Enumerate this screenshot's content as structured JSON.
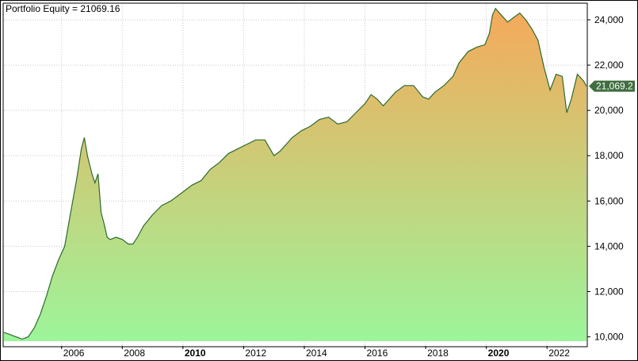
{
  "chart_data": {
    "type": "area",
    "title": "Portfolio Equity = 21069.16",
    "xlabel": "",
    "ylabel": "",
    "x_tick_labels": [
      {
        "year": 2006,
        "label": "2006",
        "bold": false
      },
      {
        "year": 2008,
        "label": "2008",
        "bold": false
      },
      {
        "year": 2010,
        "label": "2010",
        "bold": true
      },
      {
        "year": 2012,
        "label": "2012",
        "bold": false
      },
      {
        "year": 2014,
        "label": "2014",
        "bold": false
      },
      {
        "year": 2016,
        "label": "2016",
        "bold": false
      },
      {
        "year": 2018,
        "label": "2018",
        "bold": false
      },
      {
        "year": 2020,
        "label": "2020",
        "bold": true
      },
      {
        "year": 2022,
        "label": "2022",
        "bold": false
      }
    ],
    "y_tick_labels": [
      {
        "value": 10000,
        "label": "10,000"
      },
      {
        "value": 12000,
        "label": "12,000"
      },
      {
        "value": 14000,
        "label": "14,000"
      },
      {
        "value": 16000,
        "label": "16,000"
      },
      {
        "value": 18000,
        "label": "18,000"
      },
      {
        "value": 20000,
        "label": "20,000"
      },
      {
        "value": 22000,
        "label": "22,000"
      },
      {
        "value": 24000,
        "label": "24,000"
      }
    ],
    "xlim": [
      2004.1,
      2023.3
    ],
    "ylim": [
      9600,
      24700
    ],
    "last_value_label": "21,069.2",
    "grid": true,
    "colors": {
      "line": "#2e6b2e",
      "fill_top": "#f5a95a",
      "fill_bottom": "#9cf59a",
      "grid": "#c8c8c8",
      "last_value_bg": "#3f6e3f"
    },
    "series": [
      {
        "x": [
          2004.1,
          2004.3,
          2004.5,
          2004.7,
          2004.9,
          2005.1,
          2005.3,
          2005.5,
          2005.7,
          2005.9,
          2006.1,
          2006.3,
          2006.5,
          2006.65,
          2006.75,
          2006.85,
          2007.0,
          2007.1,
          2007.2,
          2007.3,
          2007.4,
          2007.5,
          2007.6,
          2007.8,
          2008.0,
          2008.2,
          2008.35,
          2008.5,
          2008.7,
          2009.0,
          2009.3,
          2009.6,
          2010.0,
          2010.3,
          2010.6,
          2010.9,
          2011.2,
          2011.5,
          2011.8,
          2012.1,
          2012.4,
          2012.7,
          2013.0,
          2013.2,
          2013.4,
          2013.6,
          2013.9,
          2014.2,
          2014.5,
          2014.8,
          2015.1,
          2015.4,
          2015.7,
          2016.0,
          2016.2,
          2016.4,
          2016.6,
          2016.8,
          2017.0,
          2017.3,
          2017.6,
          2017.9,
          2018.1,
          2018.3,
          2018.6,
          2018.9,
          2019.1,
          2019.4,
          2019.7,
          2019.95,
          2020.1,
          2020.2,
          2020.3,
          2020.5,
          2020.7,
          2020.9,
          2021.1,
          2021.3,
          2021.5,
          2021.7,
          2021.9,
          2022.1,
          2022.3,
          2022.5,
          2022.65,
          2022.8,
          2023.0,
          2023.2,
          2023.3
        ],
        "y": [
          10200,
          10100,
          10000,
          9900,
          10000,
          10400,
          11000,
          11800,
          12700,
          13400,
          14000,
          15500,
          17000,
          18300,
          18800,
          18000,
          17200,
          16800,
          17200,
          15500,
          15000,
          14400,
          14300,
          14400,
          14300,
          14100,
          14100,
          14400,
          14900,
          15400,
          15800,
          16000,
          16400,
          16700,
          16900,
          17400,
          17700,
          18100,
          18300,
          18500,
          18700,
          18700,
          18000,
          18200,
          18500,
          18800,
          19100,
          19300,
          19600,
          19700,
          19400,
          19500,
          19900,
          20300,
          20700,
          20500,
          20200,
          20500,
          20800,
          21100,
          21100,
          20600,
          20500,
          20800,
          21100,
          21500,
          22100,
          22600,
          22800,
          22900,
          23400,
          24200,
          24500,
          24200,
          23900,
          24100,
          24300,
          24000,
          23600,
          23100,
          21900,
          20900,
          21600,
          21500,
          19900,
          20500,
          21600,
          21300,
          21069
        ]
      }
    ]
  }
}
